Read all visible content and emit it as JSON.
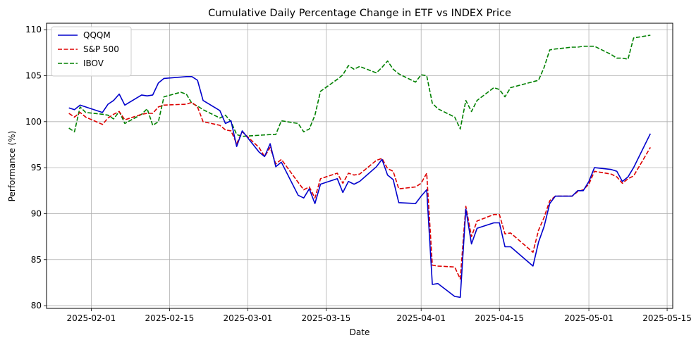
{
  "chart_data": {
    "type": "line",
    "title": "Cumulative Daily Percentage Change in ETF vs INDEX Price",
    "xlabel": "Date",
    "ylabel": "Performance (%)",
    "xlim": [
      "2025-01-24",
      "2025-05-16"
    ],
    "ylim": [
      79.7,
      110.7
    ],
    "yticks": [
      80,
      85,
      90,
      95,
      100,
      105,
      110
    ],
    "xticks": [
      "2025-02-01",
      "2025-02-15",
      "2025-03-01",
      "2025-03-15",
      "2025-04-01",
      "2025-04-15",
      "2025-05-01",
      "2025-05-15"
    ],
    "grid": true,
    "legend_position": "top-left",
    "series": [
      {
        "name": "QQQM",
        "color": "#0000cc",
        "dash": "solid",
        "x": [
          "2025-01-28",
          "2025-01-29",
          "2025-01-30",
          "2025-01-31",
          "2025-02-03",
          "2025-02-04",
          "2025-02-05",
          "2025-02-06",
          "2025-02-07",
          "2025-02-10",
          "2025-02-11",
          "2025-02-12",
          "2025-02-13",
          "2025-02-14",
          "2025-02-18",
          "2025-02-19",
          "2025-02-20",
          "2025-02-21",
          "2025-02-24",
          "2025-02-25",
          "2025-02-26",
          "2025-02-27",
          "2025-02-28",
          "2025-03-03",
          "2025-03-04",
          "2025-03-05",
          "2025-03-06",
          "2025-03-07",
          "2025-03-10",
          "2025-03-11",
          "2025-03-12",
          "2025-03-13",
          "2025-03-14",
          "2025-03-17",
          "2025-03-18",
          "2025-03-19",
          "2025-03-20",
          "2025-03-21",
          "2025-03-24",
          "2025-03-25",
          "2025-03-26",
          "2025-03-27",
          "2025-03-28",
          "2025-03-31",
          "2025-04-01",
          "2025-04-02",
          "2025-04-03",
          "2025-04-04",
          "2025-04-07",
          "2025-04-08",
          "2025-04-09",
          "2025-04-10",
          "2025-04-11",
          "2025-04-14",
          "2025-04-15",
          "2025-04-16",
          "2025-04-17",
          "2025-04-21",
          "2025-04-22",
          "2025-04-23",
          "2025-04-24",
          "2025-04-25",
          "2025-04-28",
          "2025-04-29",
          "2025-04-30",
          "2025-05-01",
          "2025-05-02",
          "2025-05-05",
          "2025-05-06",
          "2025-05-07",
          "2025-05-08",
          "2025-05-09",
          "2025-05-12"
        ],
        "y": [
          101.5,
          101.3,
          101.8,
          101.6,
          101.0,
          101.9,
          102.3,
          103.0,
          101.8,
          102.9,
          102.8,
          102.9,
          104.2,
          104.7,
          104.9,
          104.9,
          104.5,
          102.3,
          101.2,
          99.8,
          100.1,
          97.3,
          99.0,
          96.7,
          96.2,
          97.6,
          95.1,
          95.6,
          92.0,
          91.7,
          92.7,
          91.1,
          93.2,
          93.8,
          92.3,
          93.5,
          93.2,
          93.5,
          95.1,
          95.9,
          94.2,
          93.7,
          91.2,
          91.1,
          91.9,
          92.6,
          82.3,
          82.4,
          81.0,
          80.9,
          90.5,
          86.7,
          88.4,
          89.0,
          89.0,
          86.4,
          86.4,
          84.3,
          86.9,
          88.6,
          91.1,
          91.9,
          91.9,
          92.5,
          92.5,
          93.5,
          95.0,
          94.8,
          94.6,
          93.5,
          94.0,
          95.0,
          98.7
        ]
      },
      {
        "name": "S&P 500",
        "color": "#dd0000",
        "dash": "dashed",
        "x": [
          "2025-01-28",
          "2025-01-29",
          "2025-01-30",
          "2025-01-31",
          "2025-02-03",
          "2025-02-04",
          "2025-02-05",
          "2025-02-06",
          "2025-02-07",
          "2025-02-10",
          "2025-02-11",
          "2025-02-12",
          "2025-02-13",
          "2025-02-14",
          "2025-02-18",
          "2025-02-19",
          "2025-02-20",
          "2025-02-21",
          "2025-02-24",
          "2025-02-25",
          "2025-02-26",
          "2025-02-27",
          "2025-02-28",
          "2025-03-03",
          "2025-03-04",
          "2025-03-05",
          "2025-03-06",
          "2025-03-07",
          "2025-03-10",
          "2025-03-11",
          "2025-03-12",
          "2025-03-13",
          "2025-03-14",
          "2025-03-17",
          "2025-03-18",
          "2025-03-19",
          "2025-03-20",
          "2025-03-21",
          "2025-03-24",
          "2025-03-25",
          "2025-03-26",
          "2025-03-27",
          "2025-03-28",
          "2025-03-31",
          "2025-04-01",
          "2025-04-02",
          "2025-04-03",
          "2025-04-04",
          "2025-04-07",
          "2025-04-08",
          "2025-04-09",
          "2025-04-10",
          "2025-04-11",
          "2025-04-14",
          "2025-04-15",
          "2025-04-16",
          "2025-04-17",
          "2025-04-21",
          "2025-04-22",
          "2025-04-23",
          "2025-04-24",
          "2025-04-25",
          "2025-04-28",
          "2025-04-29",
          "2025-04-30",
          "2025-05-01",
          "2025-05-02",
          "2025-05-05",
          "2025-05-06",
          "2025-05-07",
          "2025-05-08",
          "2025-05-09",
          "2025-05-12"
        ],
        "y": [
          100.9,
          100.5,
          101.0,
          100.5,
          99.7,
          100.4,
          100.8,
          101.1,
          100.2,
          100.8,
          100.9,
          100.9,
          101.6,
          101.8,
          101.9,
          102.1,
          101.6,
          100.0,
          99.6,
          99.1,
          99.0,
          97.6,
          98.9,
          97.2,
          96.2,
          97.2,
          95.4,
          95.9,
          93.4,
          92.6,
          92.9,
          91.7,
          93.8,
          94.4,
          93.3,
          94.4,
          94.2,
          94.3,
          95.8,
          96.0,
          94.9,
          94.6,
          92.7,
          92.9,
          93.3,
          94.4,
          84.4,
          84.3,
          84.2,
          82.9,
          90.8,
          87.5,
          89.2,
          89.9,
          89.9,
          87.8,
          87.9,
          85.8,
          88.2,
          89.6,
          91.4,
          91.9,
          91.9,
          92.4,
          92.6,
          93.2,
          94.6,
          94.3,
          94.0,
          93.3,
          93.8,
          94.1,
          97.2
        ]
      },
      {
        "name": "IBOV",
        "color": "#008000",
        "dash": "dashed",
        "x": [
          "2025-01-28",
          "2025-01-29",
          "2025-01-30",
          "2025-01-31",
          "2025-02-03",
          "2025-02-04",
          "2025-02-05",
          "2025-02-06",
          "2025-02-07",
          "2025-02-10",
          "2025-02-11",
          "2025-02-12",
          "2025-02-13",
          "2025-02-14",
          "2025-02-17",
          "2025-02-18",
          "2025-02-19",
          "2025-02-20",
          "2025-02-21",
          "2025-02-24",
          "2025-02-25",
          "2025-02-26",
          "2025-02-27",
          "2025-02-28",
          "2025-03-05",
          "2025-03-06",
          "2025-03-07",
          "2025-03-10",
          "2025-03-11",
          "2025-03-12",
          "2025-03-13",
          "2025-03-14",
          "2025-03-17",
          "2025-03-18",
          "2025-03-19",
          "2025-03-20",
          "2025-03-21",
          "2025-03-24",
          "2025-03-25",
          "2025-03-26",
          "2025-03-27",
          "2025-03-28",
          "2025-03-31",
          "2025-04-01",
          "2025-04-02",
          "2025-04-03",
          "2025-04-04",
          "2025-04-07",
          "2025-04-08",
          "2025-04-09",
          "2025-04-10",
          "2025-04-11",
          "2025-04-14",
          "2025-04-15",
          "2025-04-16",
          "2025-04-17",
          "2025-04-22",
          "2025-04-23",
          "2025-04-24",
          "2025-04-25",
          "2025-04-28",
          "2025-04-29",
          "2025-04-30",
          "2025-05-02",
          "2025-05-05",
          "2025-05-06",
          "2025-05-07",
          "2025-05-08",
          "2025-05-09",
          "2025-05-12"
        ],
        "y": [
          99.3,
          98.9,
          101.6,
          101.0,
          100.8,
          100.7,
          100.3,
          101.1,
          99.8,
          100.8,
          101.4,
          99.6,
          100.0,
          102.7,
          103.2,
          103.0,
          102.0,
          101.7,
          101.3,
          100.4,
          100.7,
          100.0,
          98.6,
          98.4,
          98.6,
          98.6,
          100.1,
          99.8,
          98.9,
          99.2,
          100.7,
          103.3,
          104.6,
          105.1,
          106.1,
          105.7,
          106.0,
          105.3,
          105.9,
          106.6,
          105.7,
          105.2,
          104.3,
          105.1,
          105.0,
          102.0,
          101.4,
          100.5,
          99.2,
          102.3,
          101.1,
          102.3,
          103.7,
          103.5,
          102.7,
          103.7,
          104.5,
          105.9,
          107.8,
          107.9,
          108.1,
          108.1,
          108.2,
          108.2,
          107.3,
          106.9,
          106.9,
          106.8,
          109.1,
          109.4
        ]
      }
    ]
  }
}
